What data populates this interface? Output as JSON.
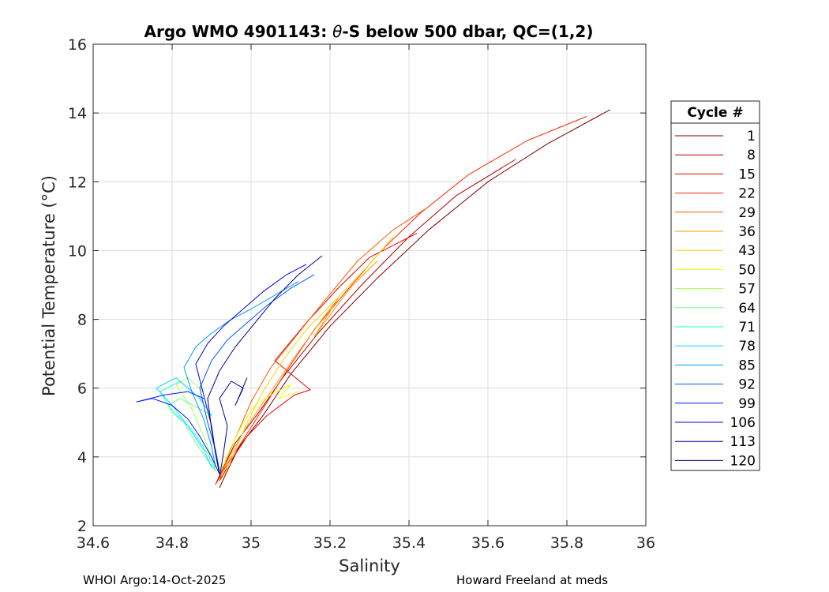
{
  "chart_data": {
    "type": "line",
    "title_prefix": "Argo WMO 4901143: ",
    "title_symbol": "θ",
    "title_suffix": "-S below 500 dbar,  QC=(1,2)",
    "xlabel": "Salinity",
    "ylabel": "Potential Temperature (°C)",
    "xlim": [
      34.6,
      36
    ],
    "ylim": [
      2,
      16
    ],
    "xticks": [
      34.6,
      34.8,
      35,
      35.2,
      35.4,
      35.6,
      35.8,
      36
    ],
    "xtick_labels": [
      "34.6",
      "34.8",
      "35",
      "35.2",
      "35.4",
      "35.6",
      "35.8",
      "36"
    ],
    "yticks": [
      2,
      4,
      6,
      8,
      10,
      12,
      14,
      16
    ],
    "ytick_labels": [
      "2",
      "4",
      "6",
      "8",
      "10",
      "12",
      "14",
      "16"
    ],
    "grid": true,
    "colormap": "jet (reversed: cycle 1 dark red, cycle 120 dark blue)",
    "legend": {
      "title": "Cycle #",
      "placement": "outside-right",
      "entries": [
        {
          "label": "1",
          "color": "#800000"
        },
        {
          "label": "8",
          "color": "#b30000"
        },
        {
          "label": "15",
          "color": "#e60000"
        },
        {
          "label": "22",
          "color": "#ff2600"
        },
        {
          "label": "29",
          "color": "#ff5900"
        },
        {
          "label": "36",
          "color": "#ff9900"
        },
        {
          "label": "43",
          "color": "#ffd500"
        },
        {
          "label": "50",
          "color": "#e6ff10"
        },
        {
          "label": "57",
          "color": "#a6ff50"
        },
        {
          "label": "64",
          "color": "#66ff90"
        },
        {
          "label": "71",
          "color": "#26ffd0"
        },
        {
          "label": "78",
          "color": "#00d9ff"
        },
        {
          "label": "85",
          "color": "#0099ff"
        },
        {
          "label": "92",
          "color": "#0059ff"
        },
        {
          "label": "99",
          "color": "#0019ff"
        },
        {
          "label": "106",
          "color": "#0000d9"
        },
        {
          "label": "113",
          "color": "#00009a"
        },
        {
          "label": "120",
          "color": "#00008f"
        }
      ]
    },
    "series": [
      {
        "name": "1",
        "color": "#800000",
        "x": [
          34.92,
          34.94,
          34.97,
          35.03,
          35.1,
          35.2,
          35.32,
          35.45,
          35.6,
          35.75,
          35.91
        ],
        "y": [
          3.1,
          3.6,
          4.3,
          5.2,
          6.4,
          7.8,
          9.2,
          10.6,
          12.0,
          13.1,
          14.1
        ]
      },
      {
        "name": "8",
        "color": "#b30000",
        "x": [
          34.91,
          34.93,
          34.96,
          35.02,
          35.08,
          35.17,
          35.28,
          35.4,
          35.52,
          35.67
        ],
        "y": [
          3.2,
          3.7,
          4.4,
          5.3,
          6.3,
          7.6,
          9.0,
          10.4,
          11.6,
          12.65
        ]
      },
      {
        "name": "15",
        "color": "#e60000",
        "x": [
          34.92,
          34.95,
          34.99,
          35.04,
          35.11,
          35.15,
          35.06,
          35.14,
          35.22,
          35.3,
          35.42
        ],
        "y": [
          3.3,
          3.9,
          4.6,
          5.2,
          5.8,
          5.95,
          6.8,
          7.9,
          8.9,
          9.8,
          10.5
        ]
      },
      {
        "name": "22",
        "color": "#ff2600",
        "x": [
          34.91,
          34.94,
          34.98,
          35.03,
          35.09,
          35.16,
          35.24,
          35.33,
          35.43,
          35.55,
          35.7,
          35.85
        ],
        "y": [
          3.2,
          3.8,
          4.5,
          5.4,
          6.5,
          7.7,
          8.8,
          10.0,
          11.1,
          12.2,
          13.2,
          13.9
        ]
      },
      {
        "name": "29",
        "color": "#ff5900",
        "x": [
          34.92,
          34.94,
          34.97,
          35.0,
          35.05,
          35.12,
          35.19,
          35.27,
          35.36,
          35.44
        ],
        "y": [
          3.3,
          4.0,
          4.8,
          5.6,
          6.6,
          7.6,
          8.6,
          9.7,
          10.6,
          11.2
        ]
      },
      {
        "name": "36",
        "color": "#ff9900",
        "x": [
          34.92,
          34.95,
          34.99,
          35.05,
          35.11,
          35.18,
          35.22,
          35.16,
          35.25,
          35.32
        ],
        "y": [
          3.4,
          4.1,
          4.9,
          5.9,
          6.9,
          8.0,
          8.6,
          7.5,
          8.9,
          9.7
        ]
      },
      {
        "name": "43",
        "color": "#ffd500",
        "x": [
          34.93,
          34.96,
          34.99,
          35.03,
          35.08,
          35.14,
          35.2,
          35.25,
          35.3,
          35.36
        ],
        "y": [
          3.4,
          4.2,
          5.0,
          5.9,
          6.8,
          7.7,
          8.4,
          9.0,
          9.6,
          10.4
        ]
      },
      {
        "name": "50",
        "color": "#e6ff10",
        "x": [
          34.92,
          34.95,
          34.98,
          35.01,
          35.05,
          35.1,
          35.07,
          35.12
        ],
        "y": [
          3.5,
          4.3,
          5.0,
          5.5,
          5.8,
          6.1,
          5.7,
          5.9
        ]
      },
      {
        "name": "57",
        "color": "#a6ff50",
        "x": [
          34.91,
          34.9,
          34.88,
          34.85,
          34.81,
          34.84,
          34.88
        ],
        "y": [
          3.6,
          4.0,
          4.6,
          5.4,
          6.1,
          6.3,
          5.9
        ]
      },
      {
        "name": "64",
        "color": "#66ff90",
        "x": [
          34.91,
          34.89,
          34.86,
          34.83,
          34.79,
          34.82,
          34.87,
          34.9
        ],
        "y": [
          3.6,
          3.9,
          4.4,
          5.0,
          5.5,
          5.7,
          5.4,
          5.2
        ]
      },
      {
        "name": "71",
        "color": "#26ffd0",
        "x": [
          34.91,
          34.89,
          34.85,
          34.8,
          34.77,
          34.82,
          34.88
        ],
        "y": [
          3.6,
          4.1,
          4.8,
          5.3,
          5.9,
          6.2,
          5.6
        ]
      },
      {
        "name": "78",
        "color": "#00d9ff",
        "x": [
          34.9,
          34.88,
          34.84,
          34.8,
          34.76,
          34.81,
          34.87,
          34.9
        ],
        "y": [
          3.7,
          4.2,
          4.9,
          5.5,
          6.0,
          6.3,
          5.7,
          5.2
        ]
      },
      {
        "name": "85",
        "color": "#0099ff",
        "x": [
          34.91,
          34.9,
          34.88,
          34.85,
          34.83,
          34.86,
          34.9,
          34.95,
          35.0,
          35.06,
          35.12
        ],
        "y": [
          3.7,
          4.3,
          5.1,
          5.9,
          6.6,
          7.2,
          7.6,
          8.0,
          8.3,
          8.7,
          9.1
        ]
      },
      {
        "name": "92",
        "color": "#0059ff",
        "x": [
          34.92,
          34.91,
          34.89,
          34.87,
          34.9,
          34.94,
          34.99,
          35.04,
          35.1,
          35.16
        ],
        "y": [
          3.6,
          4.2,
          5.0,
          6.0,
          6.8,
          7.4,
          7.9,
          8.4,
          8.9,
          9.3
        ]
      },
      {
        "name": "99",
        "color": "#0019ff",
        "x": [
          34.92,
          34.9,
          34.87,
          34.84,
          34.8,
          34.75,
          34.71,
          34.78,
          34.84,
          34.88
        ],
        "y": [
          3.5,
          4.0,
          4.6,
          5.1,
          5.5,
          5.7,
          5.6,
          5.8,
          5.9,
          5.7
        ]
      },
      {
        "name": "106",
        "color": "#0000d9",
        "x": [
          34.92,
          34.91,
          34.9,
          34.88,
          34.86,
          34.89,
          34.93,
          34.98,
          35.03,
          35.09,
          35.14
        ],
        "y": [
          3.5,
          4.1,
          4.9,
          5.8,
          6.7,
          7.3,
          7.8,
          8.3,
          8.8,
          9.3,
          9.6
        ]
      },
      {
        "name": "113",
        "color": "#00009a",
        "x": [
          34.92,
          34.93,
          34.94,
          34.92,
          34.95,
          34.98,
          34.96,
          34.99
        ],
        "y": [
          3.4,
          4.1,
          4.9,
          5.7,
          6.2,
          6.0,
          5.5,
          6.3
        ]
      },
      {
        "name": "120",
        "color": "#00008f",
        "x": [
          34.92,
          34.91,
          34.9,
          34.89,
          34.92,
          34.96,
          35.01,
          35.06,
          35.12,
          35.18
        ],
        "y": [
          3.5,
          4.1,
          4.8,
          5.7,
          6.5,
          7.2,
          7.9,
          8.6,
          9.3,
          9.85
        ]
      }
    ]
  },
  "footer": {
    "left": "WHOI Argo:14-Oct-2025",
    "right": "Howard Freeland at meds"
  }
}
